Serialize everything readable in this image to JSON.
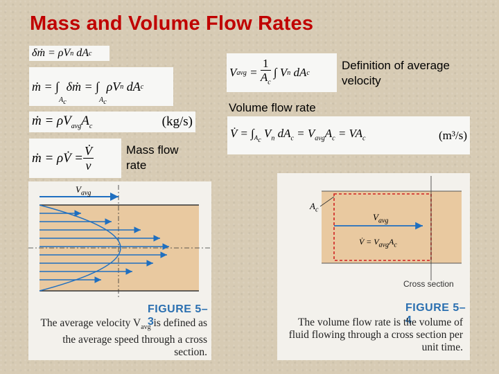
{
  "title": "Mass and Volume Flow Rates",
  "equations": {
    "eq1": "δṁ = ρV",
    "eq2_left": "ṁ = ∫",
    "eq2_mid": " δṁ = ∫",
    "eq2_right": " ρV",
    "eq2_sub": "A",
    "eq3": "ṁ = ρV",
    "eq3_unit": "(kg/s)",
    "eq4_left": "ṁ = ρV̇ = ",
    "eq5_left": "V",
    "eq5_rest": "∫ V",
    "eq6_left": "V̇ = ∫",
    "eq6_mid": " V",
    "eq6_right": " = V",
    "eq6_unit": "(m³/s)"
  },
  "labels": {
    "definition": "Definition of average velocity",
    "volume_flow_rate": "Volume flow rate",
    "mass_flow_rate": "Mass flow rate"
  },
  "figure_5_3": {
    "header": "FIGURE 5–3",
    "caption": "The average velocity V",
    "caption_sub": "avg",
    "caption_rest": " is defined as the average speed through a cross section.",
    "vavg_label": "V",
    "vavg_sub": "avg"
  },
  "figure_5_4": {
    "header": "FIGURE 5–4",
    "caption": "The volume flow rate is the volume of fluid flowing through a cross section per unit time.",
    "ac_label": "A",
    "ac_sub": "c",
    "vavg_label": "V",
    "vavg_sub": "avg",
    "vdot_label": "V̇ = V",
    "vdot_sub": "avg",
    "vdot_rest": "A",
    "vdot_rest_sub": "c",
    "cross_section_label": "Cross section"
  },
  "colors": {
    "title": "#c00000",
    "figure_header": "#2a6fb0",
    "arrow": "#1f6fc0",
    "pipe": "#e9c9a0",
    "dashed_box": "#d02020"
  }
}
